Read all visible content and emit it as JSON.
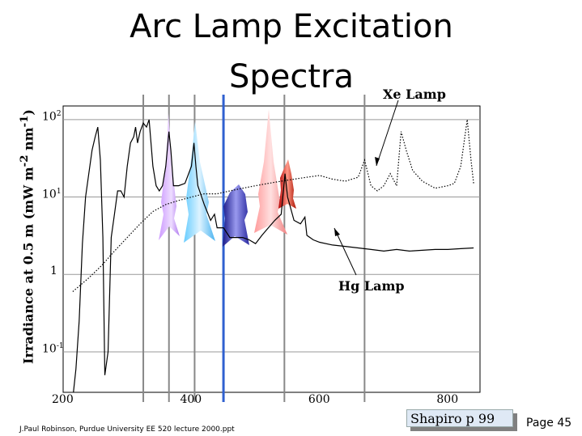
{
  "slide": {
    "title_line1": "Arc Lamp Excitation",
    "title_line2": "Spectra",
    "credit": "J.Paul Robinson, Purdue University EE 520 lecture 2000.ppt",
    "page": "Page 45",
    "source": "Shapiro p 99"
  },
  "chart_data": {
    "type": "line",
    "ylabel": "Irradiance at 0.5 m (mW m-2 nm-1)",
    "yscale": "log",
    "ylim": [
      0.03,
      150
    ],
    "xlim": [
      200,
      850
    ],
    "x_ticks": [
      "200",
      "400",
      "600",
      "800"
    ],
    "y_ticks": [
      {
        "base": "10",
        "exp": "2"
      },
      {
        "base": "10",
        "exp": "1"
      },
      {
        "base": "1",
        "exp": ""
      },
      {
        "base": "10",
        "exp": "-1"
      }
    ],
    "grid": true,
    "annotations": [
      "Xe Lamp",
      "Hg Lamp"
    ],
    "reference_lines_nm": [
      325,
      365,
      405,
      450,
      545,
      670
    ],
    "highlight_line_nm": 450,
    "series": [
      {
        "line_style": "solid",
        "x": [
          216,
          220,
          225,
          230,
          235,
          240,
          245,
          250,
          254,
          258,
          262,
          265,
          270,
          275,
          280,
          285,
          290,
          295,
          300,
          305,
          310,
          313,
          316,
          320,
          325,
          330,
          334,
          340,
          345,
          350,
          355,
          360,
          365,
          368,
          372,
          380,
          390,
          400,
          404,
          407,
          410,
          420,
          430,
          436,
          440,
          450,
          460,
          470,
          480,
          490,
          500,
          510,
          520,
          530,
          540,
          546,
          550,
          560,
          570,
          577,
          580,
          590,
          600,
          620,
          640,
          660,
          680,
          700,
          720,
          740,
          760,
          780,
          800,
          820,
          840
        ],
        "y": [
          0.03,
          0.06,
          0.25,
          2.5,
          10,
          20,
          40,
          60,
          80,
          30,
          3,
          0.05,
          0.1,
          3,
          6,
          12,
          12,
          10,
          25,
          50,
          60,
          80,
          50,
          70,
          90,
          80,
          100,
          25,
          14,
          12,
          14,
          25,
          70,
          40,
          14,
          14,
          15,
          25,
          50,
          25,
          14,
          8,
          5,
          6,
          4,
          4,
          3,
          3,
          3,
          2.8,
          2.5,
          3.2,
          4,
          5,
          6,
          20,
          10,
          5,
          4.5,
          5.5,
          3.2,
          2.8,
          2.6,
          2.4,
          2.3,
          2.2,
          2.1,
          2.0,
          2.1,
          2.0,
          2.05,
          2.1,
          2.1,
          2.15,
          2.2
        ]
      },
      {
        "line_style": "dotted",
        "x": [
          215,
          240,
          260,
          280,
          300,
          320,
          340,
          360,
          380,
          400,
          420,
          440,
          460,
          480,
          500,
          520,
          540,
          560,
          580,
          600,
          620,
          640,
          660,
          670,
          680,
          690,
          700,
          710,
          720,
          727,
          735,
          745,
          760,
          780,
          800,
          810,
          820,
          830,
          836,
          840
        ],
        "y": [
          0.6,
          0.9,
          1.3,
          2,
          3,
          4.5,
          6.5,
          8,
          9,
          10,
          11,
          11,
          12,
          13,
          14,
          15,
          16,
          17,
          18,
          19,
          17,
          16,
          18,
          30,
          14,
          12,
          14,
          20,
          14,
          70,
          40,
          22,
          16,
          13,
          14,
          15,
          25,
          100,
          30,
          15
        ]
      }
    ]
  }
}
